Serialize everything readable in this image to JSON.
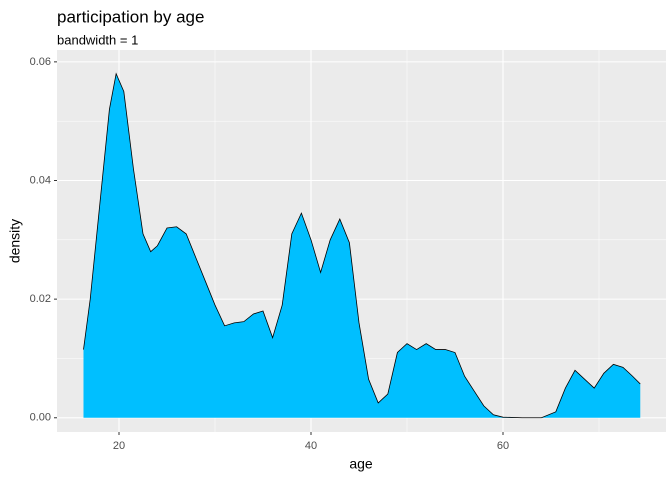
{
  "chart_data": {
    "type": "area",
    "title": "participation by age",
    "subtitle": "bandwidth = 1",
    "x_label": "age",
    "y_label": "density",
    "x": [
      16.3,
      17,
      18,
      19,
      19.7,
      20.5,
      21.5,
      22.5,
      23.3,
      24,
      25,
      26,
      27,
      28,
      29,
      30,
      31,
      32,
      33,
      34,
      35,
      36,
      37,
      38,
      39,
      40,
      41,
      42,
      43,
      44,
      45,
      46,
      47,
      48,
      49,
      50,
      51,
      52,
      53,
      54,
      55,
      56,
      57,
      58,
      59,
      60,
      62,
      64,
      65.5,
      66.5,
      67.5,
      68.5,
      69.5,
      70.5,
      71.5,
      72.5,
      73.5,
      74.3
    ],
    "values": [
      0.0115,
      0.02,
      0.036,
      0.052,
      0.058,
      0.055,
      0.042,
      0.031,
      0.028,
      0.029,
      0.032,
      0.0322,
      0.031,
      0.027,
      0.023,
      0.019,
      0.0155,
      0.016,
      0.0162,
      0.0175,
      0.018,
      0.0135,
      0.019,
      0.031,
      0.0345,
      0.03,
      0.0245,
      0.03,
      0.0335,
      0.0295,
      0.016,
      0.0065,
      0.0025,
      0.004,
      0.011,
      0.0125,
      0.0115,
      0.0125,
      0.0115,
      0.0115,
      0.011,
      0.007,
      0.0045,
      0.002,
      0.0005,
      0.0001,
      0,
      0,
      0.001,
      0.005,
      0.008,
      0.0065,
      0.005,
      0.0075,
      0.009,
      0.0085,
      0.007,
      0.0057
    ],
    "color": "#00BFFF",
    "xlim": [
      13.54,
      76.98
    ],
    "ylim": [
      -0.0024,
      0.062
    ],
    "xticks": [
      20,
      40,
      60
    ],
    "yticks": [
      {
        "value": 0,
        "label": "0.00"
      },
      {
        "value": 0.02,
        "label": "0.02"
      },
      {
        "value": 0.04,
        "label": "0.04"
      },
      {
        "value": 0.06,
        "label": "0.06"
      }
    ],
    "grid": true
  }
}
